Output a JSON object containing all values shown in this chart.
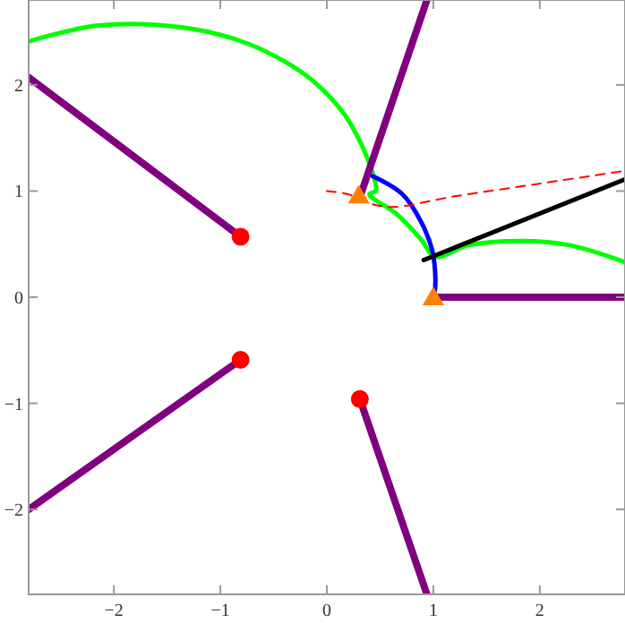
{
  "chart_data": {
    "type": "line",
    "xlim": [
      -2.8,
      2.8
    ],
    "ylim": [
      -2.8,
      2.8
    ],
    "xticks": [
      -2,
      -1,
      0,
      1,
      2
    ],
    "yticks": [
      -2,
      -1,
      0,
      1,
      2
    ],
    "grid": false,
    "series": [
      {
        "color": "#00ff00",
        "x": [
          -2.8,
          -2.15,
          -1.35,
          -0.8,
          -0.43,
          -0.12,
          0.16,
          0.32,
          0.41,
          0.46,
          0.46,
          0.4,
          0.66,
          0.88,
          1.02,
          1.33,
          1.83,
          2.28,
          2.8
        ],
        "values": [
          2.41,
          2.56,
          2.54,
          2.41,
          2.24,
          2.03,
          1.73,
          1.45,
          1.23,
          1.06,
          1.0,
          0.97,
          0.78,
          0.55,
          0.38,
          0.49,
          0.53,
          0.49,
          0.33
        ]
      },
      {
        "type": "line",
        "color": "#800080",
        "x": [
          -2.8,
          -0.81
        ],
        "values": [
          2.07,
          0.57
        ]
      },
      {
        "type": "line",
        "color": "#800080",
        "x": [
          -2.8,
          -0.81
        ],
        "values": [
          -2.0,
          -0.59
        ]
      },
      {
        "type": "line",
        "color": "#800080",
        "x": [
          0.31,
          0.94
        ],
        "values": [
          -0.96,
          -2.8
        ]
      },
      {
        "type": "line",
        "color": "#800080",
        "x": [
          0.94,
          0.31
        ],
        "values": [
          2.8,
          0.94
        ]
      },
      {
        "type": "line",
        "color": "#800080",
        "x": [
          1.0,
          2.8
        ],
        "values": [
          0,
          0
        ]
      },
      {
        "color": "#0000ff",
        "x": [
          0.43,
          0.71,
          0.88,
          0.99,
          1.02,
          1.01
        ],
        "values": [
          1.14,
          0.97,
          0.72,
          0.44,
          0.16,
          0.02
        ]
      },
      {
        "type": "line",
        "color": "#000000",
        "x": [
          0.91,
          2.8
        ],
        "values": [
          0.35,
          1.11
        ]
      },
      {
        "type": "line",
        "color": "#ff0000",
        "line_style": "dashed",
        "x": [
          0.0,
          0.2,
          0.35,
          0.6,
          1.2,
          2.0,
          2.8
        ],
        "values": [
          1.0,
          0.97,
          0.9,
          0.85,
          0.95,
          1.07,
          1.19
        ]
      },
      {
        "type": "scatter",
        "color": "#ff0000",
        "marker": "circle",
        "x": [
          -0.81,
          -0.81,
          0.31
        ],
        "values": [
          0.57,
          -0.59,
          -0.96
        ]
      },
      {
        "type": "scatter",
        "color": "#ff8000",
        "marker": "triangle",
        "x": [
          0.3,
          1.0
        ],
        "values": [
          0.96,
          0
        ]
      }
    ]
  }
}
